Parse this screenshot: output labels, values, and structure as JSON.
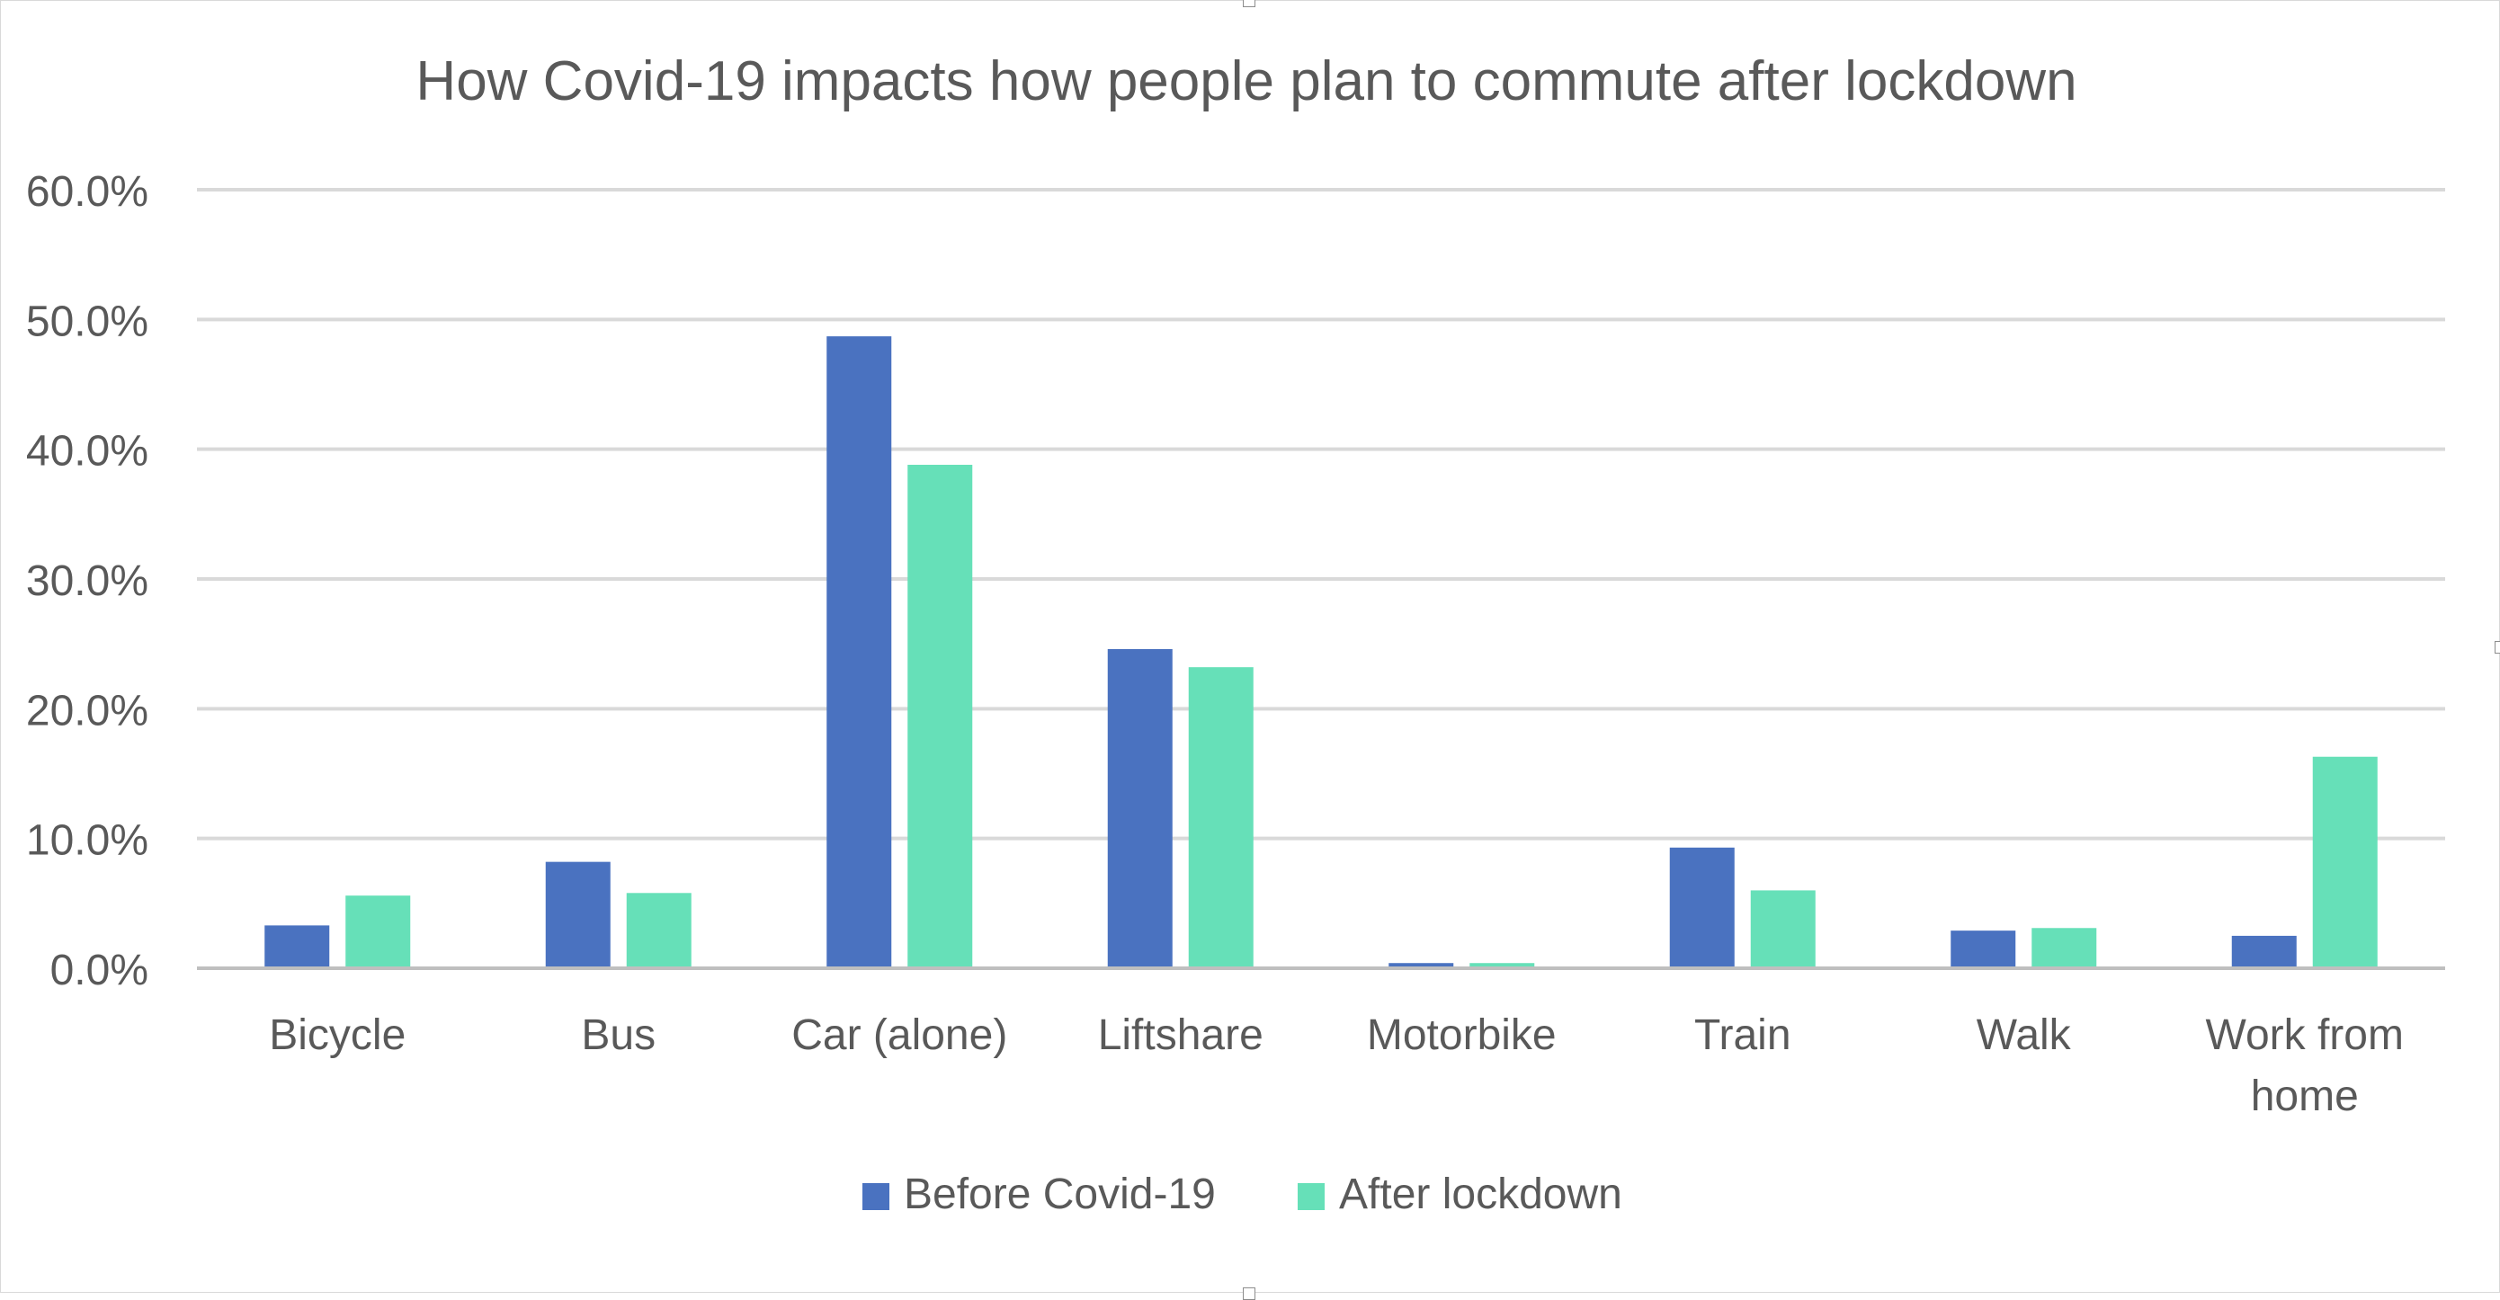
{
  "chart_data": {
    "type": "bar",
    "title": "How Covid-19 impacts how people plan to commute after lockdown",
    "xlabel": "",
    "ylabel": "",
    "categories": [
      "Bicycle",
      "Bus",
      "Car (alone)",
      "Liftshare",
      "Motorbike",
      "Train",
      "Walk",
      "Work from home"
    ],
    "category_lines": [
      [
        "Bicycle"
      ],
      [
        "Bus"
      ],
      [
        "Car (alone)"
      ],
      [
        "Liftshare"
      ],
      [
        "Motorbike"
      ],
      [
        "Train"
      ],
      [
        "Walk"
      ],
      [
        "Work from",
        "home"
      ]
    ],
    "series": [
      {
        "name": "Before Covid-19",
        "color": "#4A72C0",
        "values": [
          3.3,
          8.2,
          48.7,
          24.6,
          0.4,
          9.3,
          2.9,
          2.5
        ]
      },
      {
        "name": "After lockdown",
        "color": "#66E0B8",
        "values": [
          5.6,
          5.8,
          38.8,
          23.2,
          0.4,
          6.0,
          3.1,
          16.3
        ]
      }
    ],
    "ylim": [
      0,
      60
    ],
    "yticks": [
      "0.0%",
      "10.0%",
      "20.0%",
      "30.0%",
      "40.0%",
      "50.0%",
      "60.0%"
    ],
    "grid": true,
    "legend_position": "bottom",
    "colors": {
      "grid": "#D9D9D9",
      "axis": "#BFBFBF",
      "text": "#595959"
    }
  }
}
